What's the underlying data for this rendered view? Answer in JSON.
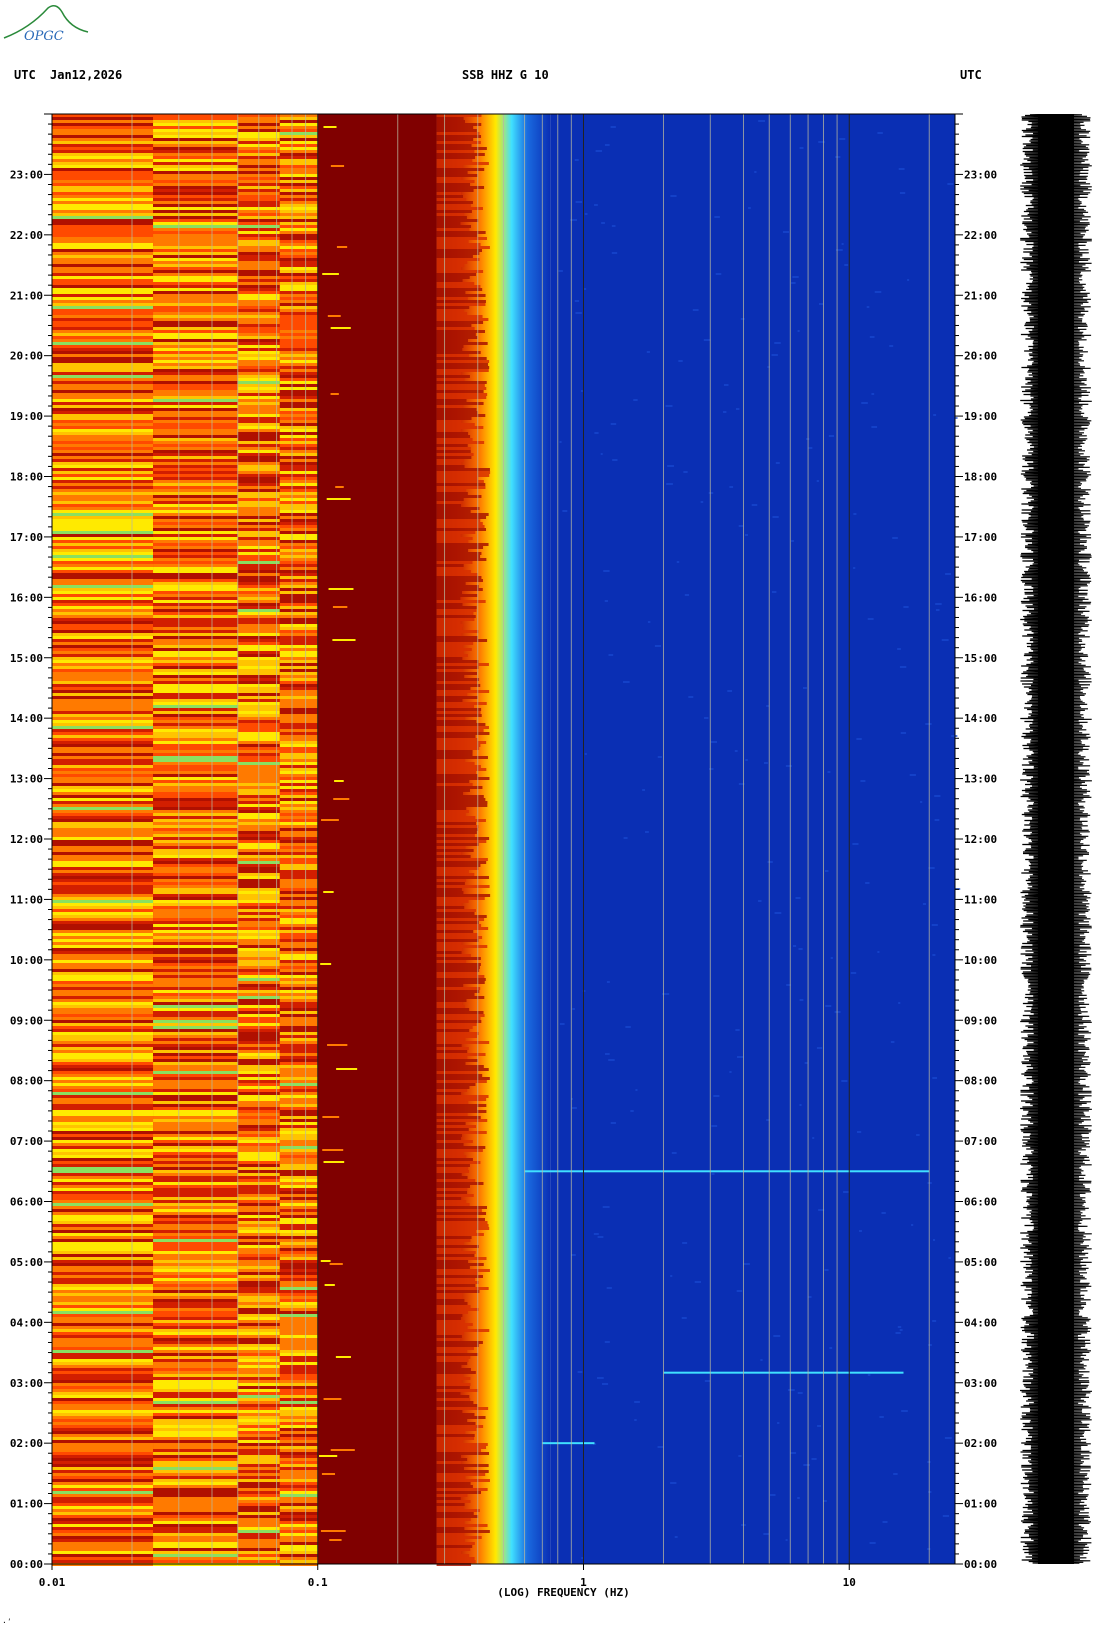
{
  "header": {
    "utc_left": "UTC",
    "date": "Jan12,2026",
    "station": "SSB HHZ G 10",
    "utc_right": "UTC"
  },
  "logo": {
    "text": "OPGC",
    "color": "#2a8a3a"
  },
  "mark": "·ʹ",
  "chart_data": {
    "type": "heatmap",
    "title": "SSB HHZ G 10",
    "xlabel": "(LOG) FREQUENCY (HZ)",
    "ylabel": "",
    "x_scale": "log",
    "xlim": [
      0.01,
      25
    ],
    "x_ticks": [
      {
        "value": 0.01,
        "label": "0.01"
      },
      {
        "value": 0.1,
        "label": "0.1"
      },
      {
        "value": 1,
        "label": "1"
      },
      {
        "value": 10,
        "label": "10"
      }
    ],
    "ylim_hours": [
      0,
      24
    ],
    "y_ticks": [
      {
        "value": 0,
        "label": "00:00"
      },
      {
        "value": 1,
        "label": "01:00"
      },
      {
        "value": 2,
        "label": "02:00"
      },
      {
        "value": 3,
        "label": "03:00"
      },
      {
        "value": 4,
        "label": "04:00"
      },
      {
        "value": 5,
        "label": "05:00"
      },
      {
        "value": 6,
        "label": "06:00"
      },
      {
        "value": 7,
        "label": "07:00"
      },
      {
        "value": 8,
        "label": "08:00"
      },
      {
        "value": 9,
        "label": "09:00"
      },
      {
        "value": 10,
        "label": "10:00"
      },
      {
        "value": 11,
        "label": "11:00"
      },
      {
        "value": 12,
        "label": "12:00"
      },
      {
        "value": 13,
        "label": "13:00"
      },
      {
        "value": 14,
        "label": "14:00"
      },
      {
        "value": 15,
        "label": "15:00"
      },
      {
        "value": 16,
        "label": "16:00"
      },
      {
        "value": 17,
        "label": "17:00"
      },
      {
        "value": 18,
        "label": "18:00"
      },
      {
        "value": 19,
        "label": "19:00"
      },
      {
        "value": 20,
        "label": "20:00"
      },
      {
        "value": 21,
        "label": "21:00"
      },
      {
        "value": 22,
        "label": "22:00"
      },
      {
        "value": 23,
        "label": "23:00"
      }
    ],
    "bands": [
      {
        "f_min": 0.01,
        "f_max": 0.1,
        "description": "broadband noise, red/orange/yellow"
      },
      {
        "f_min": 0.1,
        "f_max": 0.28,
        "description": "saturated dark red"
      },
      {
        "f_min": 0.28,
        "f_max": 0.75,
        "description": "microseism peak, transition red-yellow-cyan"
      },
      {
        "f_min": 0.75,
        "f_max": 25,
        "description": "low energy, blue"
      }
    ],
    "events": [
      {
        "time": "02:00",
        "f_min": 0.7,
        "f_max": 1.1
      },
      {
        "time": "03:10",
        "f_min": 2.0,
        "f_max": 16
      },
      {
        "time": "06:30",
        "f_min": 0.6,
        "f_max": 20
      }
    ],
    "grid_lines_hz": [
      0.02,
      0.03,
      0.04,
      0.05,
      0.06,
      0.07,
      0.08,
      0.09,
      0.2,
      0.3,
      0.4,
      0.5,
      0.6,
      0.7,
      0.8,
      0.9,
      2,
      3,
      4,
      5,
      6,
      7,
      8,
      9,
      20
    ],
    "colors": {
      "deep_red": "#800000",
      "red": "#d21e00",
      "orange": "#ff7a00",
      "yellow": "#ffea00",
      "cyan": "#40e0ff",
      "blue": "#0a2fb4",
      "dark_blue": "#041b8c"
    }
  }
}
